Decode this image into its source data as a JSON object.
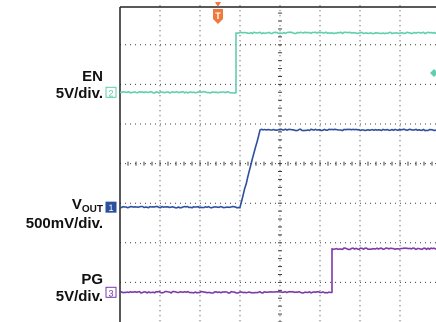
{
  "labels": {
    "en": {
      "name": "EN",
      "scale": "5V/div."
    },
    "vout": {
      "name_main": "V",
      "name_sub": "OUT",
      "scale": "500mV/div."
    },
    "pg": {
      "name": "PG",
      "scale": "5V/div."
    }
  },
  "markers": {
    "trigger": "T",
    "ch2": "2",
    "ch1": "1",
    "ch3": "3"
  },
  "colors": {
    "en": "#5fcfae",
    "vout": "#2c4f9e",
    "pg": "#7a3aa8",
    "trigger": "#f07a3c",
    "grid": "#3d3d3d",
    "frame": "#222222"
  },
  "chart_data": {
    "type": "line",
    "title": "",
    "xlabel": "",
    "ylabel": "",
    "xlim": [
      0,
      8
    ],
    "ylim": [
      0,
      8
    ],
    "grid": true,
    "series": [
      {
        "name": "EN",
        "x": [
          0,
          2.9,
          2.9,
          8
        ],
        "y": [
          5.8,
          5.8,
          7.3,
          7.3
        ]
      },
      {
        "name": "VOUT",
        "x": [
          0,
          3.0,
          3.5,
          8
        ],
        "y": [
          2.9,
          2.9,
          4.85,
          4.85
        ]
      },
      {
        "name": "PG",
        "x": [
          0,
          5.3,
          5.3,
          8
        ],
        "y": [
          0.75,
          0.75,
          1.85,
          1.85
        ]
      }
    ]
  }
}
